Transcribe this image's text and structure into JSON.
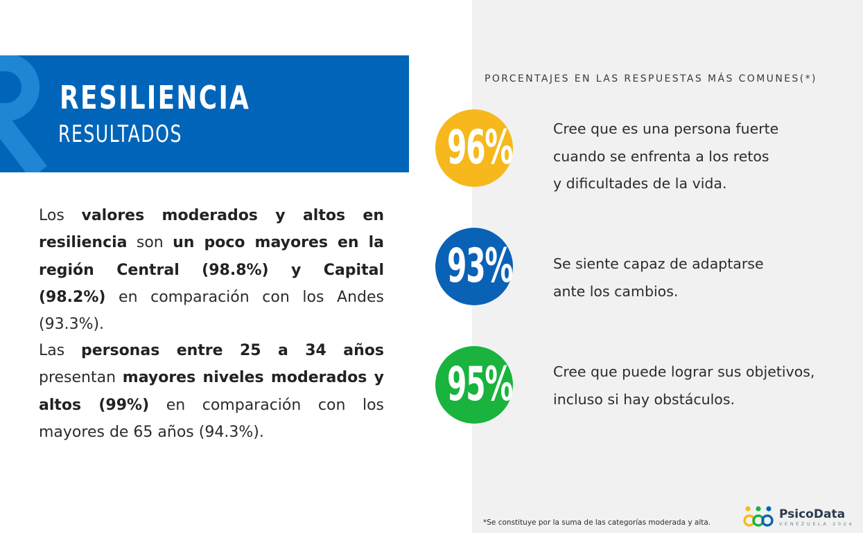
{
  "header": {
    "title": "RESILIENCIA",
    "subtitle": "RESULTADOS",
    "accent_color": "#0065b8"
  },
  "paragraphs": [
    {
      "segments": [
        {
          "text": "Los ",
          "bold": false
        },
        {
          "text": "valores moderados y altos en resiliencia",
          "bold": true
        },
        {
          "text": " son ",
          "bold": false
        },
        {
          "text": "un poco mayores en la región Central (98.8%) y Capital (98.2%)",
          "bold": true
        },
        {
          "text": " en comparación con los Andes (93.3%).",
          "bold": false
        }
      ]
    },
    {
      "segments": [
        {
          "text": "Las ",
          "bold": false
        },
        {
          "text": "personas entre 25 a 34 años",
          "bold": true
        },
        {
          "text": " presentan ",
          "bold": false
        },
        {
          "text": "mayores niveles moderados y altos (99%)",
          "bold": true
        },
        {
          "text": " en comparación con los mayores de 65 años (94.3%).",
          "bold": false
        }
      ]
    }
  ],
  "section_label": "PORCENTAJES EN LAS RESPUESTAS MÁS COMUNES(*)",
  "stats": [
    {
      "value": "96%",
      "color": "#f6b81c",
      "lines": [
        "Cree que es una persona fuerte",
        "cuando se enfrenta a los retos",
        "y dificultades de la vida."
      ]
    },
    {
      "value": "93%",
      "color": "#0a62b6",
      "lines": [
        "Se siente capaz de adaptarse",
        "ante los cambios."
      ]
    },
    {
      "value": "95%",
      "color": "#19b33d",
      "lines": [
        "Cree que puede lograr sus objetivos,",
        "incluso si hay obstáculos."
      ]
    }
  ],
  "footnote": "*Se constituye por la suma de las categorías moderada y alta.",
  "logo": {
    "name": "PsicoData",
    "subtitle": "VENEZUELA 2024",
    "icon": "people-group-icon"
  }
}
